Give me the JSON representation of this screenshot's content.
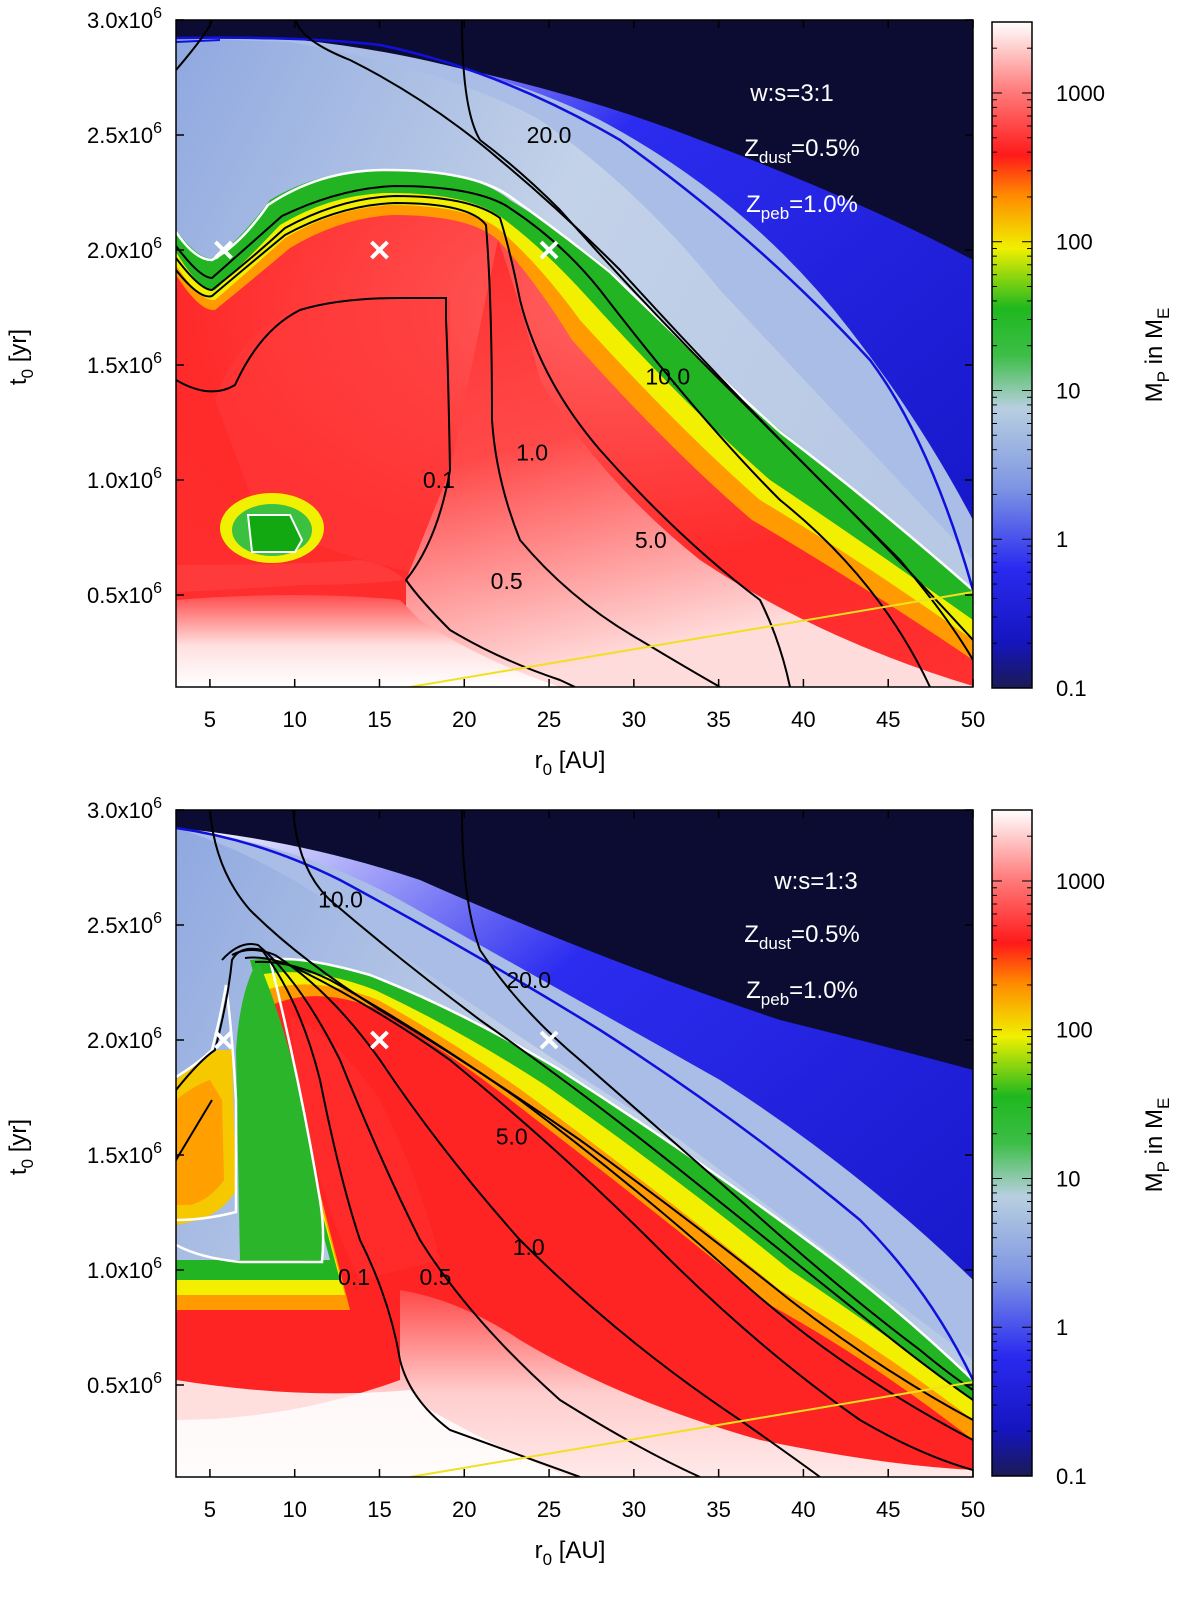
{
  "chart_data": [
    {
      "type": "heatmap",
      "xlabel": "r",
      "xlabel_sub": "0",
      "xlabel_unit": " [AU]",
      "ylabel": "t",
      "ylabel_sub": "0",
      "ylabel_unit": " [yr]",
      "xlim": [
        3,
        50
      ],
      "ylim": [
        100000,
        3000000
      ],
      "xticks": [
        5,
        10,
        15,
        20,
        25,
        30,
        35,
        40,
        45,
        50
      ],
      "yticks": [
        {
          "value": 500000,
          "mant": "0.5x10",
          "exp": "6"
        },
        {
          "value": 1000000,
          "mant": "1.0x10",
          "exp": "6"
        },
        {
          "value": 1500000,
          "mant": "1.5x10",
          "exp": "6"
        },
        {
          "value": 2000000,
          "mant": "2.0x10",
          "exp": "6"
        },
        {
          "value": 2500000,
          "mant": "2.5x10",
          "exp": "6"
        },
        {
          "value": 3000000,
          "mant": "3.0x10",
          "exp": "6"
        }
      ],
      "colorbar": {
        "label": "M",
        "label_sub": "P",
        "label_mid": " in M",
        "label_sub2": "E",
        "scale": "log",
        "range": [
          0.1,
          3000
        ],
        "ticks": [
          "0.1",
          "1",
          "10",
          "100",
          "1000"
        ]
      },
      "annotations": {
        "ratio": "w:s=3:1",
        "zdust_pre": "Z",
        "zdust_sub": "dust",
        "zdust_post": "=0.5%",
        "zpeb_pre": "Z",
        "zpeb_sub": "peb",
        "zpeb_post": "=1.0%"
      },
      "markers": [
        {
          "r": 5.8,
          "t": 2000000
        },
        {
          "r": 15,
          "t": 2000000
        },
        {
          "r": 25,
          "t": 2000000
        }
      ],
      "contours": [
        {
          "label": "0.1",
          "label_r": 18.5,
          "label_t": 1000000
        },
        {
          "label": "0.5",
          "label_r": 22.5,
          "label_t": 560000
        },
        {
          "label": "1.0",
          "label_r": 24,
          "label_t": 1120000
        },
        {
          "label": "5.0",
          "label_r": 31,
          "label_t": 740000
        },
        {
          "label": "10.0",
          "label_r": 32,
          "label_t": 1450000
        },
        {
          "label": "20.0",
          "label_r": 25,
          "label_t": 2500000
        }
      ],
      "colors": {
        "dark": "#0c0c33",
        "blue_line": "#1010dd",
        "gold_line": "#f0e020",
        "white_contour": "#ffffff"
      }
    },
    {
      "type": "heatmap",
      "xlabel": "r",
      "xlabel_sub": "0",
      "xlabel_unit": " [AU]",
      "ylabel": "t",
      "ylabel_sub": "0",
      "ylabel_unit": " [yr]",
      "xlim": [
        3,
        50
      ],
      "ylim": [
        100000,
        3000000
      ],
      "xticks": [
        5,
        10,
        15,
        20,
        25,
        30,
        35,
        40,
        45,
        50
      ],
      "yticks": [
        {
          "value": 500000,
          "mant": "0.5x10",
          "exp": "6"
        },
        {
          "value": 1000000,
          "mant": "1.0x10",
          "exp": "6"
        },
        {
          "value": 1500000,
          "mant": "1.5x10",
          "exp": "6"
        },
        {
          "value": 2000000,
          "mant": "2.0x10",
          "exp": "6"
        },
        {
          "value": 2500000,
          "mant": "2.5x10",
          "exp": "6"
        },
        {
          "value": 3000000,
          "mant": "3.0x10",
          "exp": "6"
        }
      ],
      "colorbar": {
        "label": "M",
        "label_sub": "P",
        "label_mid": " in M",
        "label_sub2": "E",
        "scale": "log",
        "range": [
          0.1,
          3000
        ],
        "ticks": [
          "0.1",
          "1",
          "10",
          "100",
          "1000"
        ]
      },
      "annotations": {
        "ratio": "w:s=1:3",
        "zdust_pre": "Z",
        "zdust_sub": "dust",
        "zdust_post": "=0.5%",
        "zpeb_pre": "Z",
        "zpeb_sub": "peb",
        "zpeb_post": "=1.0%"
      },
      "markers": [
        {
          "r": 5.8,
          "t": 2000000
        },
        {
          "r": 15,
          "t": 2000000
        },
        {
          "r": 25,
          "t": 2000000
        }
      ],
      "contours": [
        {
          "label": "0.1",
          "label_r": 13.5,
          "label_t": 970000
        },
        {
          "label": "0.5",
          "label_r": 18.3,
          "label_t": 970000
        },
        {
          "label": "1.0",
          "label_r": 23.8,
          "label_t": 1100000
        },
        {
          "label": "5.0",
          "label_r": 22.8,
          "label_t": 1580000
        },
        {
          "label": "10.0",
          "label_r": 12.7,
          "label_t": 2610000
        },
        {
          "label": "20.0",
          "label_r": 23.8,
          "label_t": 2260000
        }
      ],
      "colors": {
        "dark": "#0c0c33",
        "blue_line": "#1010dd",
        "gold_line": "#f0e020",
        "white_contour": "#ffffff"
      }
    }
  ]
}
